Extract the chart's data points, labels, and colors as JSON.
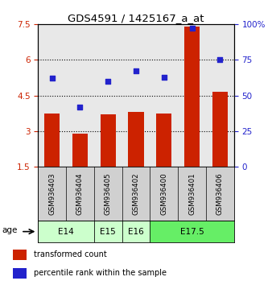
{
  "title": "GDS4591 / 1425167_a_at",
  "samples": [
    "GSM936403",
    "GSM936404",
    "GSM936405",
    "GSM936402",
    "GSM936400",
    "GSM936401",
    "GSM936406"
  ],
  "bar_values": [
    3.75,
    2.9,
    3.7,
    3.8,
    3.75,
    7.4,
    4.65
  ],
  "dot_values": [
    62,
    42,
    60,
    67,
    63,
    97,
    75
  ],
  "age_groups": [
    {
      "label": "E14",
      "span": [
        0,
        2
      ],
      "color": "#ccffcc"
    },
    {
      "label": "E15",
      "span": [
        2,
        3
      ],
      "color": "#ccffcc"
    },
    {
      "label": "E16",
      "span": [
        3,
        4
      ],
      "color": "#ccffcc"
    },
    {
      "label": "E17.5",
      "span": [
        4,
        7
      ],
      "color": "#66ee66"
    }
  ],
  "ylim_left": [
    1.5,
    7.5
  ],
  "ylim_right": [
    0,
    100
  ],
  "yticks_left": [
    1.5,
    3.0,
    4.5,
    6.0,
    7.5
  ],
  "yticks_right": [
    0,
    25,
    50,
    75,
    100
  ],
  "ytick_labels_left": [
    "1.5",
    "3",
    "4.5",
    "6",
    "7.5"
  ],
  "ytick_labels_right": [
    "0",
    "25",
    "50",
    "75",
    "100%"
  ],
  "bar_color": "#cc2200",
  "dot_color": "#2222cc",
  "grid_color": "#000000",
  "bg_color": "#e8e8e8",
  "sample_bg_color": "#d0d0d0",
  "left_tick_color": "#cc2200",
  "right_tick_color": "#2222cc"
}
